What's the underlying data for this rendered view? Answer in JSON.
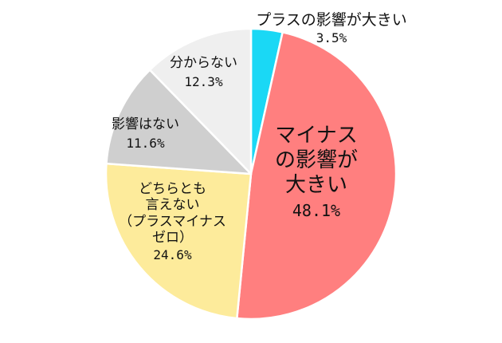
{
  "chart_data": {
    "type": "pie",
    "start_angle": "12 o'clock",
    "direction": "clockwise",
    "slices": [
      {
        "label": "プラスの影響が大きい",
        "value": 3.5,
        "value_label": "3.5%",
        "color": "#1ad8f5"
      },
      {
        "label": "マイナスの影響が大きい",
        "value": 48.1,
        "value_label": "48.1%",
        "color": "#ff7f7f"
      },
      {
        "label": "どちらとも言えない（プラスマイナスゼロ）",
        "value": 24.6,
        "value_label": "24.6%",
        "color": "#fdeb9b"
      },
      {
        "label": "影響はない",
        "value": 11.6,
        "value_label": "11.6%",
        "color": "#cfcfcf"
      },
      {
        "label": "分からない",
        "value": 12.3,
        "value_label": "12.3%",
        "color": "#efefef"
      }
    ],
    "label_lines": [
      [
        "プラスの影響が大きい"
      ],
      [
        "マイナス",
        "の影響が",
        "大きい"
      ],
      [
        "どちらとも",
        "言えない",
        "（プラスマイナス",
        "ゼロ）"
      ],
      [
        "影響はない"
      ],
      [
        "分からない"
      ]
    ]
  }
}
